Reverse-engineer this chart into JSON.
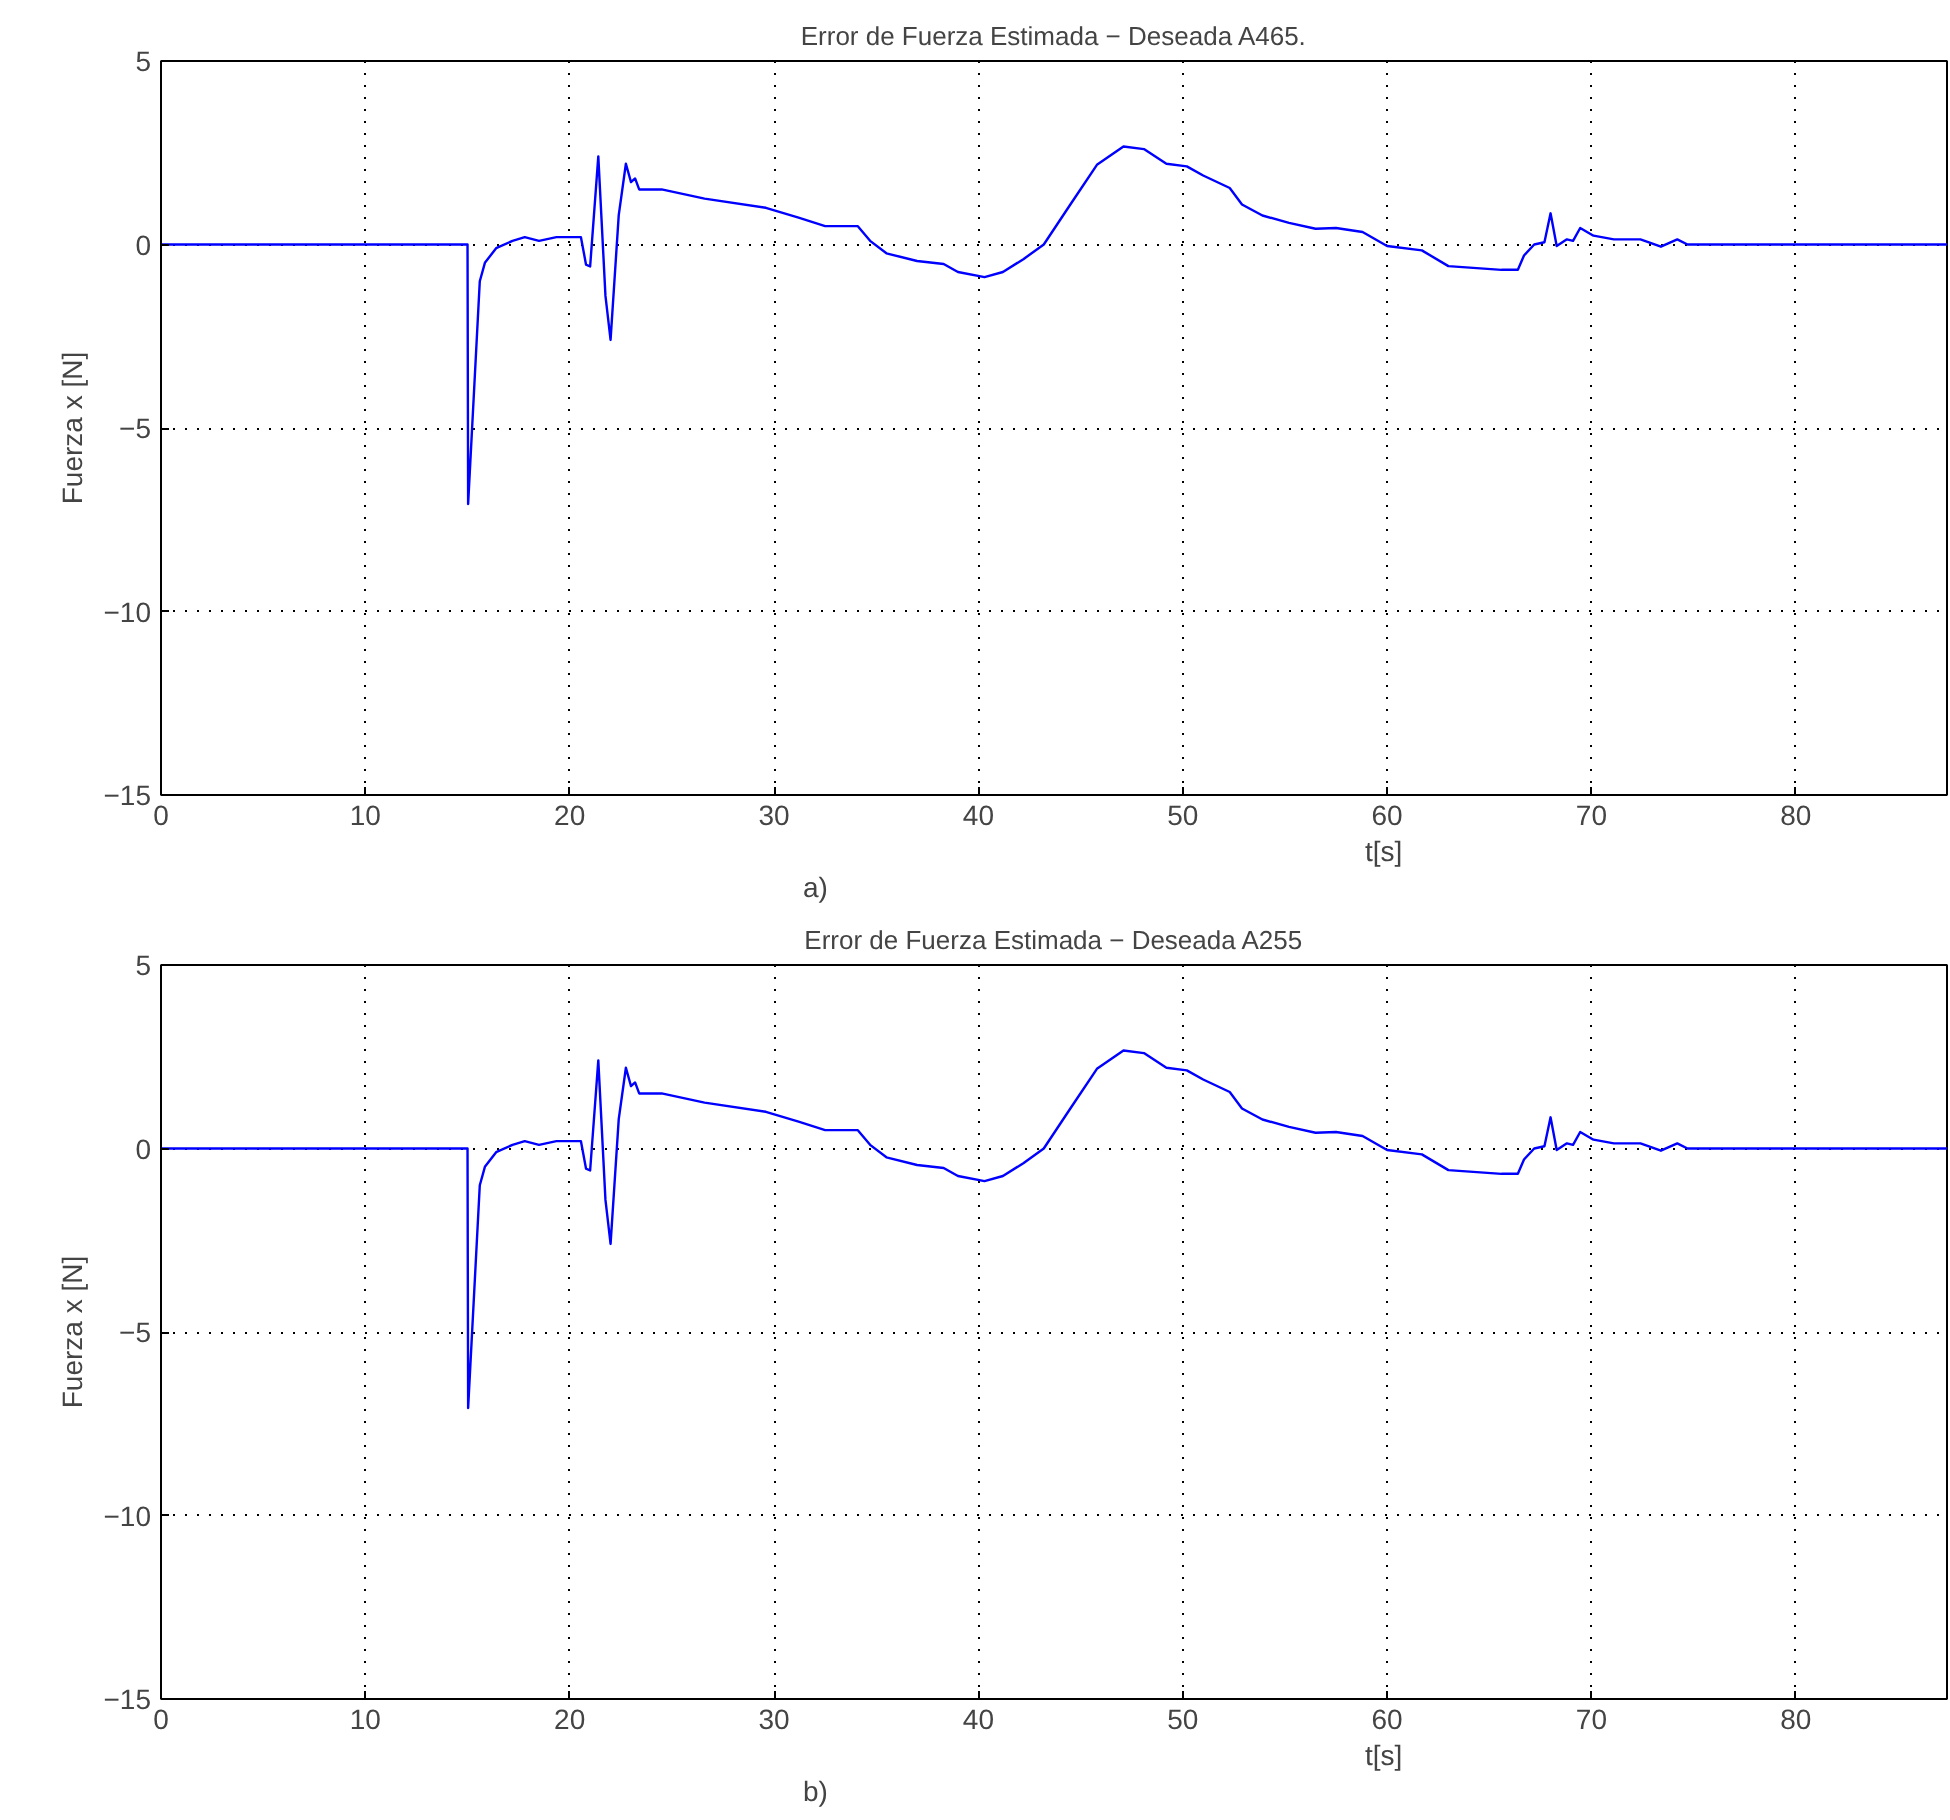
{
  "chart_data": [
    {
      "type": "line",
      "title": "Error de Fuerza Estimada − Deseada A465.",
      "xlabel": "t[s]",
      "ylabel": "Fuerza x [N]",
      "annotations": [
        "a)"
      ],
      "x": [
        0,
        15.0,
        15.03,
        15.6,
        15.85,
        16.4,
        17.2,
        17.8,
        18.5,
        19.35,
        20.55,
        20.8,
        21.0,
        21.4,
        21.75,
        22.0,
        22.4,
        22.75,
        23.0,
        23.2,
        23.4,
        24.5,
        26.6,
        29.6,
        31.2,
        32.5,
        34.1,
        34.7,
        35.5,
        37.0,
        38.3,
        39.0,
        40.3,
        41.2,
        42.2,
        43.2,
        44.5,
        45.8,
        47.1,
        48.1,
        49.2,
        50.2,
        51.0,
        52.3,
        52.9,
        53.9,
        55.2,
        56.5,
        57.5,
        58.8,
        60.0,
        61.7,
        63.0,
        65.6,
        66.4,
        66.7,
        67.2,
        67.7,
        68.0,
        68.3,
        68.8,
        69.1,
        69.45,
        70.1,
        71.1,
        72.4,
        73.4,
        74.2,
        74.7,
        87.4
      ],
      "series": [
        {
          "color": "#0000ff",
          "values": [
            0,
            0,
            -7.07,
            -1.0,
            -0.5,
            -0.1,
            0.1,
            0.2,
            0.1,
            0.2,
            0.2,
            -0.55,
            -0.6,
            2.4,
            -1.4,
            -2.6,
            0.8,
            2.2,
            1.7,
            1.8,
            1.5,
            1.5,
            1.25,
            1.0,
            0.73,
            0.5,
            0.5,
            0.1,
            -0.24,
            -0.45,
            -0.53,
            -0.75,
            -0.89,
            -0.75,
            -0.4,
            0,
            1.09,
            2.17,
            2.67,
            2.6,
            2.2,
            2.13,
            1.88,
            1.54,
            1.09,
            0.79,
            0.59,
            0.43,
            0.45,
            0.34,
            -0.04,
            -0.16,
            -0.59,
            -0.69,
            -0.69,
            -0.3,
            0,
            0.06,
            0.85,
            -0.04,
            0.14,
            0.1,
            0.45,
            0.24,
            0.14,
            0.14,
            -0.06,
            0.14,
            0,
            0
          ]
        }
      ],
      "xlim": [
        0,
        87.4
      ],
      "ylim": [
        -15,
        5
      ],
      "xticks": [
        0,
        10,
        20,
        30,
        40,
        50,
        60,
        70,
        80
      ],
      "yticks": [
        {
          "value": -15,
          "label": "−15"
        },
        {
          "value": -10,
          "label": "−10"
        },
        {
          "value": -5,
          "label": "−5"
        },
        {
          "value": 0,
          "label": "0"
        },
        {
          "value": 5,
          "label": "5"
        }
      ],
      "grid": true,
      "line_style": "solid",
      "marker": "none"
    },
    {
      "type": "line",
      "title": "Error de Fuerza Estimada − Deseada A255",
      "xlabel": "t[s]",
      "ylabel": "Fuerza x [N]",
      "annotations": [
        "b)"
      ],
      "x": [
        0,
        15.0,
        15.03,
        15.6,
        15.85,
        16.4,
        17.2,
        17.8,
        18.5,
        19.35,
        20.55,
        20.8,
        21.0,
        21.4,
        21.75,
        22.0,
        22.4,
        22.75,
        23.0,
        23.2,
        23.4,
        24.5,
        26.6,
        29.6,
        31.2,
        32.5,
        34.1,
        34.7,
        35.5,
        37.0,
        38.3,
        39.0,
        40.3,
        41.2,
        42.2,
        43.2,
        44.5,
        45.8,
        47.1,
        48.1,
        49.2,
        50.2,
        51.0,
        52.3,
        52.9,
        53.9,
        55.2,
        56.5,
        57.5,
        58.8,
        60.0,
        61.7,
        63.0,
        65.6,
        66.4,
        66.7,
        67.2,
        67.7,
        68.0,
        68.3,
        68.8,
        69.1,
        69.45,
        70.1,
        71.1,
        72.4,
        73.4,
        74.2,
        74.7,
        87.4
      ],
      "series": [
        {
          "color": "#0000ff",
          "values": [
            0,
            0,
            -7.07,
            -1.0,
            -0.5,
            -0.1,
            0.1,
            0.2,
            0.1,
            0.2,
            0.2,
            -0.55,
            -0.6,
            2.4,
            -1.4,
            -2.6,
            0.8,
            2.2,
            1.7,
            1.8,
            1.5,
            1.5,
            1.25,
            1.0,
            0.73,
            0.5,
            0.5,
            0.1,
            -0.24,
            -0.45,
            -0.53,
            -0.75,
            -0.89,
            -0.75,
            -0.4,
            0,
            1.09,
            2.17,
            2.67,
            2.6,
            2.2,
            2.13,
            1.88,
            1.54,
            1.09,
            0.79,
            0.59,
            0.43,
            0.45,
            0.34,
            -0.04,
            -0.16,
            -0.59,
            -0.69,
            -0.69,
            -0.3,
            0,
            0.06,
            0.85,
            -0.04,
            0.14,
            0.1,
            0.45,
            0.24,
            0.14,
            0.14,
            -0.06,
            0.14,
            0,
            0
          ]
        }
      ],
      "xlim": [
        0,
        87.4
      ],
      "ylim": [
        -15,
        5
      ],
      "xticks": [
        0,
        10,
        20,
        30,
        40,
        50,
        60,
        70,
        80
      ],
      "yticks": [
        {
          "value": -15,
          "label": "−15"
        },
        {
          "value": -10,
          "label": "−10"
        },
        {
          "value": -5,
          "label": "−5"
        },
        {
          "value": 0,
          "label": "0"
        },
        {
          "value": 5,
          "label": "5"
        }
      ],
      "grid": true,
      "line_style": "solid",
      "marker": "none"
    }
  ]
}
